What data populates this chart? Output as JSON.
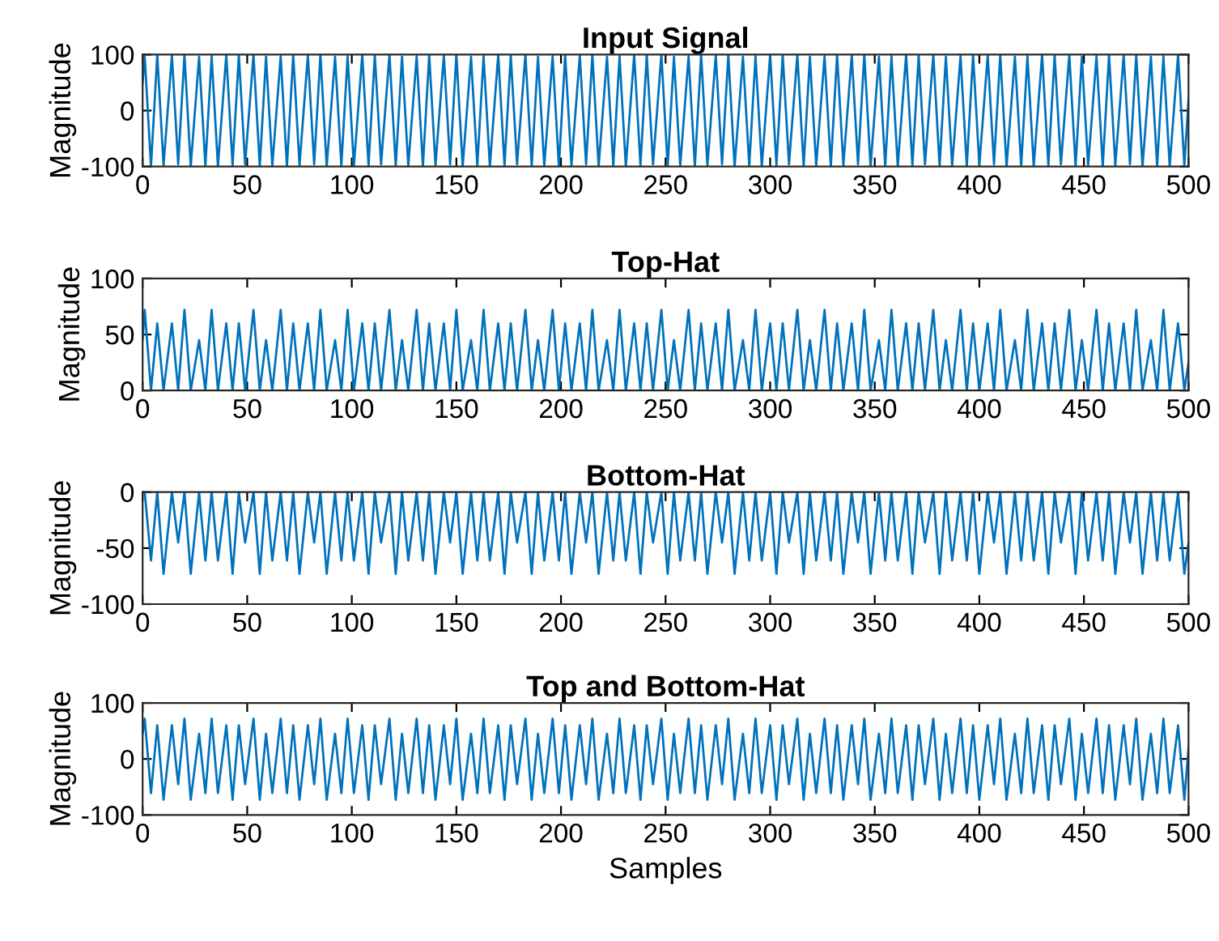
{
  "chart_data": [
    {
      "type": "line",
      "title": "Input Signal",
      "ylabel": "Magnitude",
      "color": "#0072bd",
      "xlim": [
        0,
        500
      ],
      "xticks": [
        0,
        50,
        100,
        150,
        200,
        250,
        300,
        350,
        400,
        450,
        500
      ],
      "ylim": [
        -100,
        100
      ],
      "yticks": [
        -100,
        0,
        100
      ],
      "grid": false,
      "x": [
        0,
        1,
        4,
        7,
        10,
        14,
        17,
        20,
        23,
        27,
        30,
        33,
        36,
        40,
        43,
        46,
        49,
        53,
        56,
        59,
        62,
        66,
        69,
        72,
        75,
        79,
        82,
        85,
        88,
        92,
        95,
        98,
        101,
        105,
        108,
        111,
        114,
        118,
        121,
        124,
        127,
        131,
        134,
        137,
        140,
        144,
        147,
        150,
        153,
        157,
        160,
        163,
        166,
        170,
        173,
        176,
        179,
        183,
        186,
        189,
        192,
        196,
        199,
        202,
        205,
        209,
        212,
        215,
        218,
        222,
        225,
        228,
        231,
        235,
        238,
        241,
        244,
        248,
        251,
        254,
        257,
        261,
        264,
        267,
        270,
        274,
        277,
        280,
        283,
        287,
        290,
        293,
        296,
        300,
        303,
        306,
        309,
        313,
        316,
        319,
        322,
        326,
        329,
        332,
        335,
        339,
        342,
        345,
        348,
        352,
        355,
        358,
        361,
        365,
        368,
        371,
        374,
        378,
        381,
        384,
        387,
        391,
        394,
        397,
        400,
        404,
        407,
        410,
        413,
        417,
        420,
        423,
        426,
        430,
        433,
        436,
        439,
        443,
        446,
        449,
        452,
        456,
        459,
        462,
        465,
        469,
        472,
        475,
        478,
        482,
        485,
        488,
        491,
        495,
        498,
        500
      ],
      "values": [
        50,
        97,
        -100,
        100,
        -98,
        99,
        -96,
        100,
        -100,
        96,
        -99,
        97,
        -100,
        100,
        -98,
        99,
        -96,
        100,
        -100,
        96,
        -99,
        97,
        -100,
        100,
        -98,
        99,
        -96,
        100,
        -100,
        96,
        -99,
        97,
        -100,
        100,
        -98,
        99,
        -96,
        100,
        -100,
        96,
        -99,
        97,
        -100,
        100,
        -98,
        99,
        -96,
        100,
        -100,
        96,
        -99,
        97,
        -100,
        100,
        -98,
        99,
        -96,
        100,
        -100,
        96,
        -99,
        97,
        -100,
        100,
        -98,
        99,
        -96,
        100,
        -100,
        96,
        -99,
        97,
        -100,
        100,
        -98,
        99,
        -96,
        100,
        -100,
        96,
        -99,
        97,
        -100,
        100,
        -98,
        99,
        -96,
        100,
        -100,
        96,
        -99,
        97,
        -100,
        100,
        -98,
        99,
        -96,
        100,
        -100,
        96,
        -99,
        97,
        -100,
        100,
        -98,
        99,
        -96,
        100,
        -100,
        96,
        -99,
        97,
        -100,
        100,
        -98,
        99,
        -96,
        100,
        -100,
        96,
        -99,
        97,
        -100,
        100,
        -98,
        99,
        -96,
        100,
        -100,
        96,
        -99,
        97,
        -100,
        100,
        -98,
        99,
        -96,
        100,
        -100,
        96,
        -99,
        97,
        -100,
        100,
        -98,
        99,
        -96,
        100,
        -100,
        96,
        -99,
        97,
        -100,
        100,
        -98,
        20
      ]
    },
    {
      "type": "line",
      "title": "Top-Hat",
      "ylabel": "Magnitude",
      "color": "#0072bd",
      "xlim": [
        0,
        500
      ],
      "xticks": [
        0,
        50,
        100,
        150,
        200,
        250,
        300,
        350,
        400,
        450,
        500
      ],
      "ylim": [
        0,
        100
      ],
      "yticks": [
        0,
        50,
        100
      ],
      "grid": false,
      "x": [
        0,
        1,
        4,
        7,
        10,
        14,
        17,
        20,
        23,
        27,
        30,
        33,
        36,
        40,
        43,
        46,
        49,
        53,
        56,
        59,
        62,
        66,
        69,
        72,
        75,
        79,
        82,
        85,
        88,
        92,
        95,
        98,
        101,
        105,
        108,
        111,
        114,
        118,
        121,
        124,
        127,
        131,
        134,
        137,
        140,
        144,
        147,
        150,
        153,
        157,
        160,
        163,
        166,
        170,
        173,
        176,
        179,
        183,
        186,
        189,
        192,
        196,
        199,
        202,
        205,
        209,
        212,
        215,
        218,
        222,
        225,
        228,
        231,
        235,
        238,
        241,
        244,
        248,
        251,
        254,
        257,
        261,
        264,
        267,
        270,
        274,
        277,
        280,
        283,
        287,
        290,
        293,
        296,
        300,
        303,
        306,
        309,
        313,
        316,
        319,
        322,
        326,
        329,
        332,
        335,
        339,
        342,
        345,
        348,
        352,
        355,
        358,
        361,
        365,
        368,
        371,
        374,
        378,
        381,
        384,
        387,
        391,
        394,
        397,
        400,
        404,
        407,
        410,
        413,
        417,
        420,
        423,
        426,
        430,
        433,
        436,
        439,
        443,
        446,
        449,
        452,
        456,
        459,
        462,
        465,
        469,
        472,
        475,
        478,
        482,
        485,
        488,
        491,
        495,
        498,
        500
      ],
      "values": [
        45,
        72,
        0,
        60,
        0,
        60,
        0,
        72,
        0,
        45,
        0,
        72,
        0,
        60,
        0,
        60,
        0,
        72,
        0,
        45,
        0,
        72,
        0,
        60,
        0,
        60,
        0,
        72,
        0,
        45,
        0,
        72,
        0,
        60,
        0,
        60,
        0,
        72,
        0,
        45,
        0,
        72,
        0,
        60,
        0,
        60,
        0,
        72,
        0,
        45,
        0,
        72,
        0,
        60,
        0,
        60,
        0,
        72,
        0,
        45,
        0,
        72,
        0,
        60,
        0,
        60,
        0,
        72,
        0,
        45,
        0,
        72,
        0,
        60,
        0,
        60,
        0,
        72,
        0,
        45,
        0,
        72,
        0,
        60,
        0,
        60,
        0,
        72,
        0,
        45,
        0,
        72,
        0,
        60,
        0,
        60,
        0,
        72,
        0,
        45,
        0,
        72,
        0,
        60,
        0,
        60,
        0,
        72,
        0,
        45,
        0,
        72,
        0,
        60,
        0,
        60,
        0,
        72,
        0,
        45,
        0,
        72,
        0,
        60,
        0,
        60,
        0,
        72,
        0,
        45,
        0,
        72,
        0,
        60,
        0,
        60,
        0,
        72,
        0,
        45,
        0,
        72,
        0,
        60,
        0,
        60,
        0,
        72,
        0,
        45,
        0,
        72,
        0,
        60,
        0,
        25
      ]
    },
    {
      "type": "line",
      "title": "Bottom-Hat",
      "ylabel": "Magnitude",
      "color": "#0072bd",
      "xlim": [
        0,
        500
      ],
      "xticks": [
        0,
        50,
        100,
        150,
        200,
        250,
        300,
        350,
        400,
        450,
        500
      ],
      "ylim": [
        -100,
        0
      ],
      "yticks": [
        -100,
        -50,
        0
      ],
      "grid": false,
      "x": [
        0,
        1,
        4,
        7,
        10,
        14,
        17,
        20,
        23,
        27,
        30,
        33,
        36,
        40,
        43,
        46,
        49,
        53,
        56,
        59,
        62,
        66,
        69,
        72,
        75,
        79,
        82,
        85,
        88,
        92,
        95,
        98,
        101,
        105,
        108,
        111,
        114,
        118,
        121,
        124,
        127,
        131,
        134,
        137,
        140,
        144,
        147,
        150,
        153,
        157,
        160,
        163,
        166,
        170,
        173,
        176,
        179,
        183,
        186,
        189,
        192,
        196,
        199,
        202,
        205,
        209,
        212,
        215,
        218,
        222,
        225,
        228,
        231,
        235,
        238,
        241,
        244,
        248,
        251,
        254,
        257,
        261,
        264,
        267,
        270,
        274,
        277,
        280,
        283,
        287,
        290,
        293,
        296,
        300,
        303,
        306,
        309,
        313,
        316,
        319,
        322,
        326,
        329,
        332,
        335,
        339,
        342,
        345,
        348,
        352,
        355,
        358,
        361,
        365,
        368,
        371,
        374,
        378,
        381,
        384,
        387,
        391,
        394,
        397,
        400,
        404,
        407,
        410,
        413,
        417,
        420,
        423,
        426,
        430,
        433,
        436,
        439,
        443,
        446,
        449,
        452,
        456,
        459,
        462,
        465,
        469,
        472,
        475,
        478,
        482,
        485,
        488,
        491,
        495,
        498,
        500
      ],
      "values": [
        0,
        0,
        -61,
        0,
        -73,
        0,
        -45,
        0,
        -73,
        0,
        -61,
        0,
        -61,
        0,
        -73,
        0,
        -45,
        0,
        -73,
        0,
        -61,
        0,
        -61,
        0,
        -73,
        0,
        -45,
        0,
        -73,
        0,
        -61,
        0,
        -61,
        0,
        -73,
        0,
        -45,
        0,
        -73,
        0,
        -61,
        0,
        -61,
        0,
        -73,
        0,
        -45,
        0,
        -73,
        0,
        -61,
        0,
        -61,
        0,
        -73,
        0,
        -45,
        0,
        -73,
        0,
        -61,
        0,
        -61,
        0,
        -73,
        0,
        -45,
        0,
        -73,
        0,
        -61,
        0,
        -61,
        0,
        -73,
        0,
        -45,
        0,
        -73,
        0,
        -61,
        0,
        -61,
        0,
        -73,
        0,
        -45,
        0,
        -73,
        0,
        -61,
        0,
        -61,
        0,
        -73,
        0,
        -45,
        0,
        -73,
        0,
        -61,
        0,
        -61,
        0,
        -73,
        0,
        -45,
        0,
        -73,
        0,
        -61,
        0,
        -61,
        0,
        -73,
        0,
        -45,
        0,
        -73,
        0,
        -61,
        0,
        -61,
        0,
        -73,
        0,
        -45,
        0,
        -73,
        0,
        -61,
        0,
        -61,
        0,
        -73,
        0,
        -45,
        0,
        -73,
        0,
        -61,
        0,
        -61,
        0,
        -73,
        0,
        -45,
        0,
        -73,
        0,
        -61,
        0,
        -61,
        0,
        -73,
        -45
      ]
    },
    {
      "type": "line",
      "title": "Top and Bottom-Hat",
      "xlabel": "Samples",
      "ylabel": "Magnitude",
      "color": "#0072bd",
      "xlim": [
        0,
        500
      ],
      "xticks": [
        0,
        50,
        100,
        150,
        200,
        250,
        300,
        350,
        400,
        450,
        500
      ],
      "ylim": [
        -100,
        100
      ],
      "yticks": [
        -100,
        0,
        100
      ],
      "grid": false,
      "x": [
        0,
        1,
        4,
        7,
        10,
        14,
        17,
        20,
        23,
        27,
        30,
        33,
        36,
        40,
        43,
        46,
        49,
        53,
        56,
        59,
        62,
        66,
        69,
        72,
        75,
        79,
        82,
        85,
        88,
        92,
        95,
        98,
        101,
        105,
        108,
        111,
        114,
        118,
        121,
        124,
        127,
        131,
        134,
        137,
        140,
        144,
        147,
        150,
        153,
        157,
        160,
        163,
        166,
        170,
        173,
        176,
        179,
        183,
        186,
        189,
        192,
        196,
        199,
        202,
        205,
        209,
        212,
        215,
        218,
        222,
        225,
        228,
        231,
        235,
        238,
        241,
        244,
        248,
        251,
        254,
        257,
        261,
        264,
        267,
        270,
        274,
        277,
        280,
        283,
        287,
        290,
        293,
        296,
        300,
        303,
        306,
        309,
        313,
        316,
        319,
        322,
        326,
        329,
        332,
        335,
        339,
        342,
        345,
        348,
        352,
        355,
        358,
        361,
        365,
        368,
        371,
        374,
        378,
        381,
        384,
        387,
        391,
        394,
        397,
        400,
        404,
        407,
        410,
        413,
        417,
        420,
        423,
        426,
        430,
        433,
        436,
        439,
        443,
        446,
        449,
        452,
        456,
        459,
        462,
        465,
        469,
        472,
        475,
        478,
        482,
        485,
        488,
        491,
        495,
        498,
        500
      ],
      "values": [
        45,
        72,
        -61,
        60,
        -73,
        60,
        -45,
        72,
        -73,
        45,
        -61,
        72,
        -61,
        60,
        -73,
        60,
        -45,
        72,
        -73,
        45,
        -61,
        72,
        -61,
        60,
        -73,
        60,
        -45,
        72,
        -73,
        45,
        -61,
        72,
        -61,
        60,
        -73,
        60,
        -45,
        72,
        -73,
        45,
        -61,
        72,
        -61,
        60,
        -73,
        60,
        -45,
        72,
        -73,
        45,
        -61,
        72,
        -61,
        60,
        -73,
        60,
        -45,
        72,
        -73,
        45,
        -61,
        72,
        -61,
        60,
        -73,
        60,
        -45,
        72,
        -73,
        45,
        -61,
        72,
        -61,
        60,
        -73,
        60,
        -45,
        72,
        -73,
        45,
        -61,
        72,
        -61,
        60,
        -73,
        60,
        -45,
        72,
        -73,
        45,
        -61,
        72,
        -61,
        60,
        -73,
        60,
        -45,
        72,
        -73,
        45,
        -61,
        72,
        -61,
        60,
        -73,
        60,
        -45,
        72,
        -73,
        45,
        -61,
        72,
        -61,
        60,
        -73,
        60,
        -45,
        72,
        -73,
        45,
        -61,
        72,
        -61,
        60,
        -73,
        60,
        -45,
        72,
        -73,
        45,
        -61,
        72,
        -61,
        60,
        -73,
        60,
        -45,
        72,
        -73,
        45,
        -61,
        72,
        -61,
        60,
        -73,
        60,
        -45,
        72,
        -73,
        45,
        -61,
        72,
        -61,
        60,
        -73,
        20
      ]
    }
  ]
}
